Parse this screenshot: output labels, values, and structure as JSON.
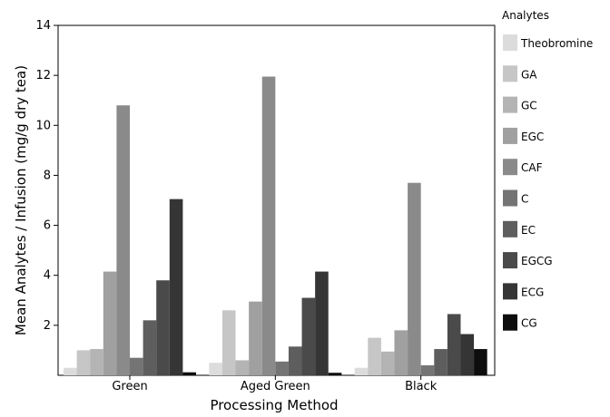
{
  "chart_data": {
    "type": "bar",
    "xlabel": "Processing Method",
    "ylabel": "Mean Analytes / Infusion (mg/g dry tea)",
    "ylim": [
      0,
      14
    ],
    "yticks": [
      2,
      4,
      6,
      8,
      10,
      12,
      14
    ],
    "grid": false,
    "legend_position": "right",
    "legend_title": "Analytes",
    "categories": [
      "Green",
      "Aged Green",
      "Black"
    ],
    "series": [
      {
        "name": "Theobromine",
        "color": "#dcdcdc",
        "values": [
          0.3,
          0.5,
          0.3
        ]
      },
      {
        "name": "GA",
        "color": "#c6c6c6",
        "values": [
          1.0,
          2.6,
          1.5
        ]
      },
      {
        "name": "GC",
        "color": "#b4b4b4",
        "values": [
          1.05,
          0.6,
          0.95
        ]
      },
      {
        "name": "EGC",
        "color": "#a0a0a0",
        "values": [
          4.15,
          2.95,
          1.8
        ]
      },
      {
        "name": "CAF",
        "color": "#8a8a8a",
        "values": [
          10.8,
          11.95,
          7.7
        ]
      },
      {
        "name": "C",
        "color": "#747474",
        "values": [
          0.7,
          0.55,
          0.4
        ]
      },
      {
        "name": "EC",
        "color": "#5e5e5e",
        "values": [
          2.2,
          1.15,
          1.05
        ]
      },
      {
        "name": "EGCG",
        "color": "#4a4a4a",
        "values": [
          3.8,
          3.1,
          2.45
        ]
      },
      {
        "name": "ECG",
        "color": "#353535",
        "values": [
          7.05,
          4.15,
          1.65
        ]
      },
      {
        "name": "CG",
        "color": "#0d0d0d",
        "values": [
          0.12,
          0.1,
          1.05
        ]
      }
    ]
  }
}
